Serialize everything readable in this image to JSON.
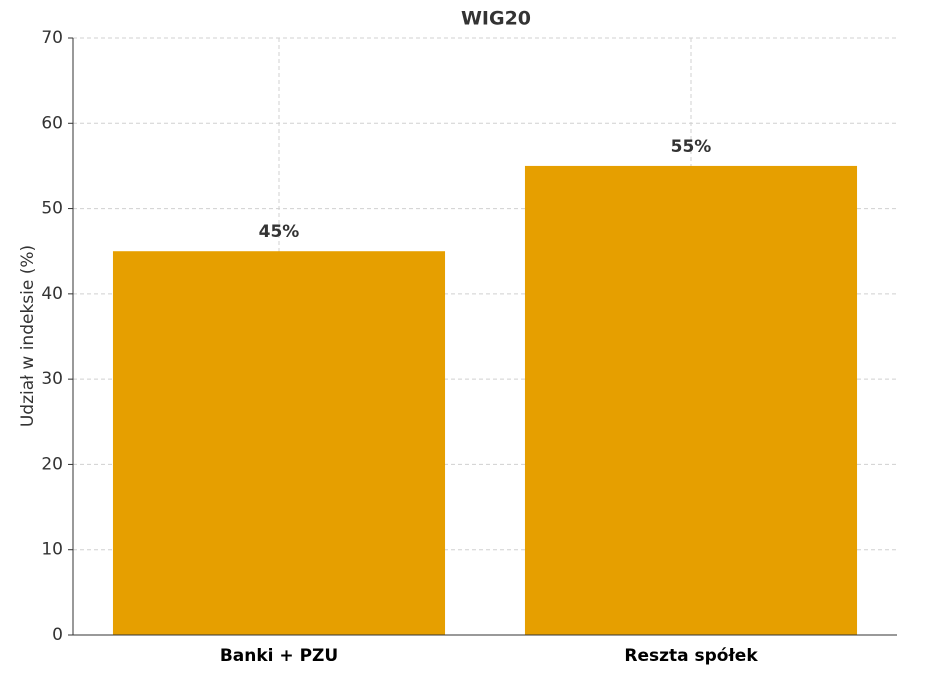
{
  "chart_data": {
    "type": "bar",
    "title": "WIG20",
    "ylabel": "Udział w indeksie (%)",
    "categories": [
      "Banki + PZU",
      "Reszta spółek"
    ],
    "values": [
      45,
      55
    ],
    "value_labels": [
      "45%",
      "55%"
    ],
    "color": "#e69f00",
    "ylim": [
      0,
      70
    ],
    "yticks": [
      0,
      10,
      20,
      30,
      40,
      50,
      60,
      70
    ],
    "grid": true
  }
}
